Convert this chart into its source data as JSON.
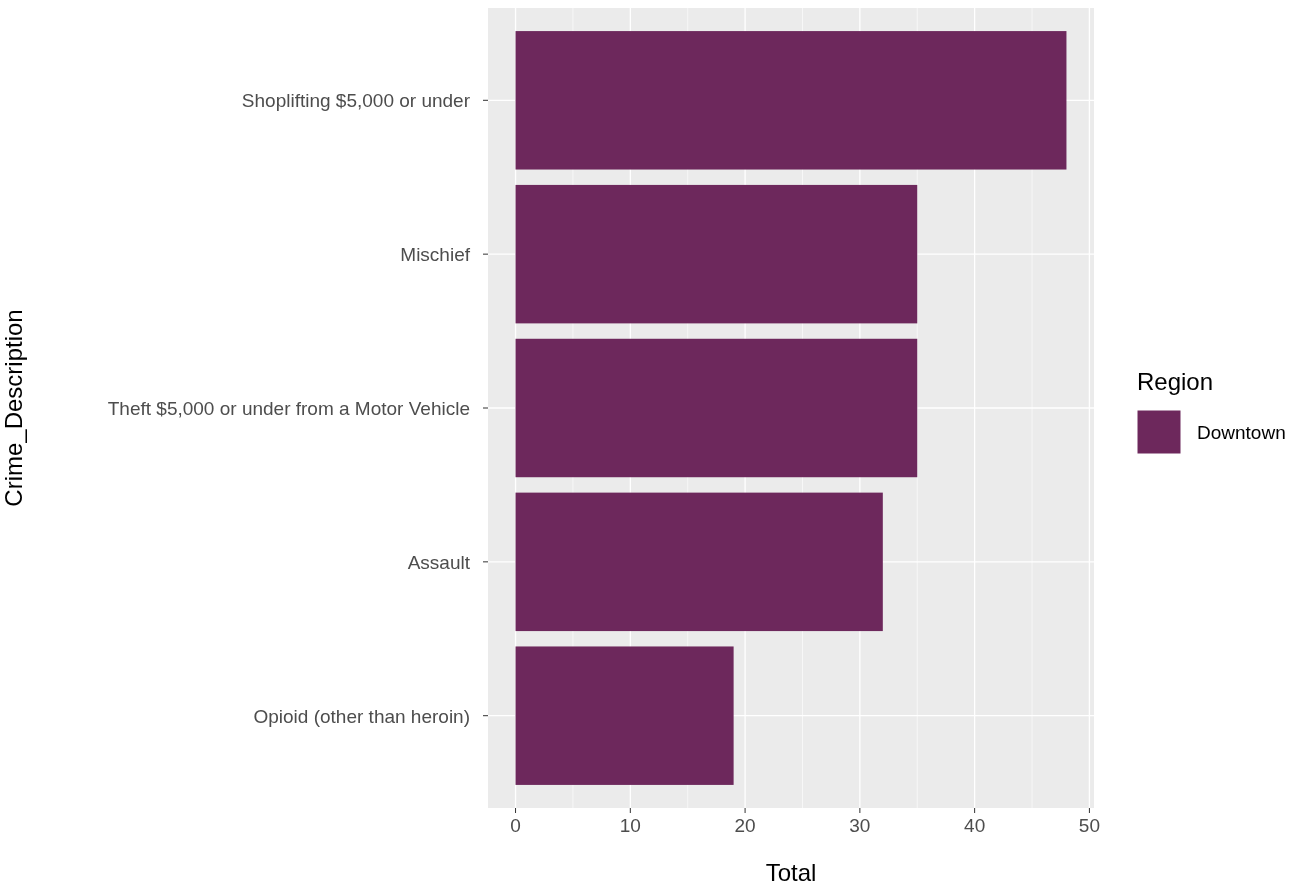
{
  "chart_data": {
    "type": "bar",
    "orientation": "horizontal",
    "xlabel": "Total",
    "ylabel": "Crime_Description",
    "legend_title": "Region",
    "categories": [
      "Shoplifting $5,000 or under",
      "Mischief",
      "Theft $5,000 or under from a Motor Vehicle",
      "Assault",
      "Opioid (other than heroin)"
    ],
    "series": [
      {
        "name": "Downtown",
        "color": "#6d285c",
        "values": [
          48,
          35,
          35,
          32,
          19
        ]
      }
    ],
    "xlim": [
      -2.4,
      50.4
    ],
    "xticks": [
      0,
      10,
      20,
      30,
      40,
      50
    ],
    "grid": true,
    "legend": "right"
  }
}
